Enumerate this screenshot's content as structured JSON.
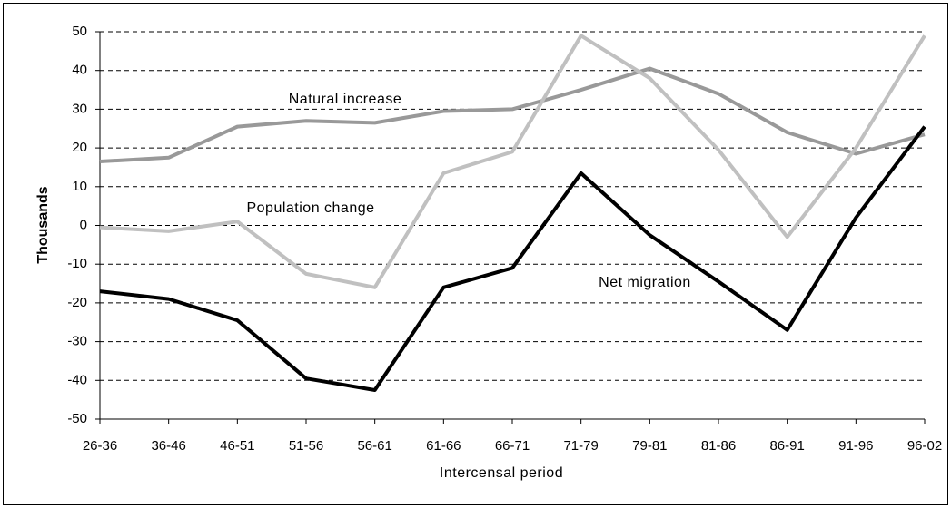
{
  "chart_data": {
    "type": "line",
    "xlabel": "Intercensal period",
    "ylabel": "Thousands",
    "categories": [
      "26-36",
      "36-46",
      "46-51",
      "51-56",
      "56-61",
      "61-66",
      "66-71",
      "71-79",
      "79-81",
      "81-86",
      "86-91",
      "91-96",
      "96-02"
    ],
    "series": [
      {
        "name": "Natural increase",
        "color": "#999999",
        "values": [
          16.5,
          17.5,
          25.5,
          27,
          26.5,
          29.5,
          30,
          35,
          40.5,
          34,
          24,
          18.5,
          23.5
        ]
      },
      {
        "name": "Population change",
        "color": "#c0c0c0",
        "values": [
          -0.5,
          -1.5,
          1,
          -12.5,
          -16,
          13.5,
          19,
          49,
          38,
          19.5,
          -3,
          20,
          49
        ]
      },
      {
        "name": "Net migration",
        "color": "#000000",
        "values": [
          -17,
          -19,
          -24.5,
          -39.5,
          -42.5,
          -16,
          -11,
          13.5,
          -2.5,
          -14.5,
          -27,
          2,
          25.5
        ]
      }
    ],
    "ylim": [
      -50,
      50
    ],
    "yticks": [
      -50,
      -40,
      -30,
      -20,
      -10,
      0,
      10,
      20,
      30,
      40,
      50
    ],
    "grid": true
  }
}
